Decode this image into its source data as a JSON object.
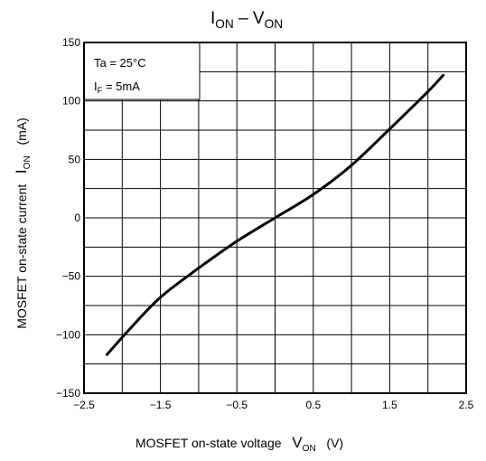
{
  "chart_data": {
    "type": "line",
    "title": {
      "main": "I",
      "main_sub": "ON",
      "sep": " – ",
      "second": "V",
      "second_sub": "ON"
    },
    "xlabel": {
      "text": "MOSFET on-state voltage",
      "symbol": "V",
      "symbol_sub": "ON",
      "unit": "(V)"
    },
    "ylabel": {
      "text": "MOSFET on-state current",
      "symbol": "I",
      "symbol_sub": "ON",
      "unit": "(mA)"
    },
    "xlim": [
      -2.5,
      2.5
    ],
    "ylim": [
      -150,
      150
    ],
    "x_ticks": [
      -2.5,
      -1.5,
      -0.5,
      0.5,
      1.5,
      2.5
    ],
    "x_tick_labels": [
      "−2.5",
      "−1.5",
      "−0.5",
      "0.5",
      "1.5",
      "2.5"
    ],
    "y_ticks": [
      -150,
      -100,
      -50,
      0,
      50,
      100,
      150
    ],
    "y_tick_labels": [
      "−150",
      "−100",
      "−50",
      "0",
      "50",
      "100",
      "150"
    ],
    "grid": true,
    "annotation": {
      "line1": "Ta = 25°C",
      "line2_pre": "I",
      "line2_sub": "F",
      "line2_post": " = 5mA"
    },
    "series": [
      {
        "x": [
          -2.2,
          -1.9,
          -1.5,
          -1.0,
          -0.5,
          0.0,
          0.5,
          1.0,
          1.5,
          2.0,
          2.2
        ],
        "y": [
          -117,
          -95,
          -68,
          -43,
          -20,
          0,
          20,
          45,
          76,
          108,
          122
        ]
      }
    ]
  }
}
